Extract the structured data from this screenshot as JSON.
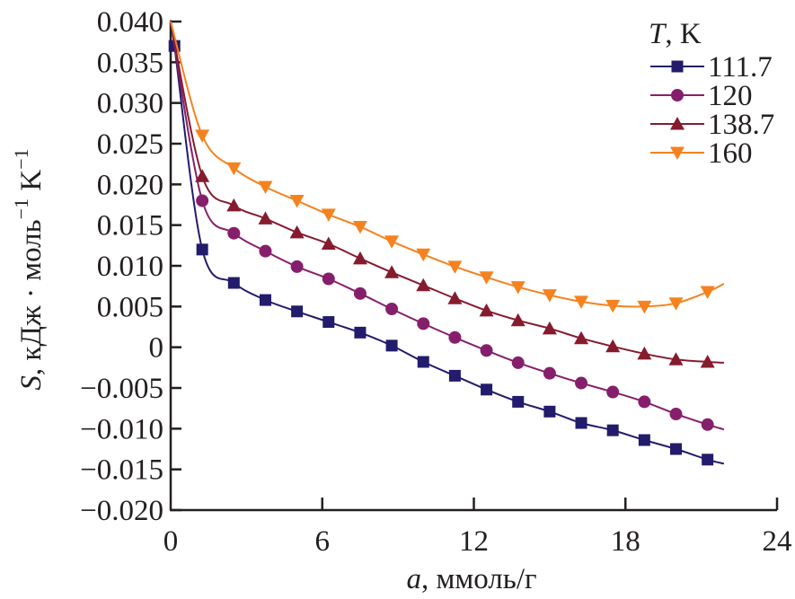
{
  "chart_data": {
    "type": "line",
    "title": "",
    "xlabel_var": "a",
    "xlabel_unit": ", ммоль/г",
    "ylabel_var": "S",
    "ylabel_unit": ", кДж · моль",
    "ylabel_sup1": "−1",
    "ylabel_unit2": " K",
    "ylabel_sup2": "−1",
    "xlim": [
      0,
      24
    ],
    "ylim": [
      -0.02,
      0.04
    ],
    "xticks": [
      0,
      6,
      12,
      18,
      24
    ],
    "xtick_labels": [
      "0",
      "6",
      "12",
      "18",
      "24"
    ],
    "yticks": [
      0.04,
      0.035,
      0.03,
      0.025,
      0.02,
      0.015,
      0.01,
      0.005,
      0,
      -0.005,
      -0.01,
      -0.015,
      -0.02
    ],
    "ytick_labels": [
      "0.040",
      "0.035",
      "0.030",
      "0.025",
      "0.020",
      "0.015",
      "0.010",
      "0.005",
      "0",
      "−0.005",
      "−0.010",
      "−0.015",
      "−0.020"
    ],
    "grid": false,
    "legend": {
      "placement": "top-right",
      "title_var": "T",
      "title_unit": ", K"
    },
    "series": [
      {
        "name": "111.7",
        "color": "#231b6b",
        "marker": "square",
        "x": [
          0.15,
          1.25,
          2.5,
          3.75,
          5,
          6.25,
          7.5,
          8.75,
          10,
          11.25,
          12.5,
          13.75,
          15,
          16.25,
          17.5,
          18.75,
          20,
          21.25
        ],
        "y": [
          0.037,
          0.012,
          0.0079,
          0.0058,
          0.0044,
          0.0031,
          0.0018,
          0.0002,
          -0.0018,
          -0.0035,
          -0.0052,
          -0.0067,
          -0.0079,
          -0.0093,
          -0.0102,
          -0.0114,
          -0.0125,
          -0.0138
        ],
        "curve_start": [
          0.0,
          0.04
        ],
        "curve_end": [
          21.9,
          -0.0143
        ]
      },
      {
        "name": "120",
        "color": "#861f6b",
        "marker": "circle",
        "x": [
          1.25,
          2.5,
          3.75,
          5,
          6.25,
          7.5,
          8.75,
          10,
          11.25,
          12.5,
          13.75,
          15,
          16.25,
          17.5,
          18.75,
          20,
          21.25
        ],
        "y": [
          0.018,
          0.014,
          0.0118,
          0.0099,
          0.0084,
          0.0066,
          0.0047,
          0.0029,
          0.0012,
          -0.0004,
          -0.0019,
          -0.0032,
          -0.0044,
          -0.0055,
          -0.0067,
          -0.0082,
          -0.0095
        ],
        "curve_start": [
          0.0,
          0.04
        ],
        "curve_end": [
          21.9,
          -0.0101
        ]
      },
      {
        "name": "138.7",
        "color": "#861b2e",
        "marker": "triangle-up",
        "x": [
          1.25,
          2.5,
          3.75,
          5,
          6.25,
          7.5,
          8.75,
          10,
          11.25,
          12.5,
          13.75,
          15,
          16.25,
          17.5,
          18.75,
          20,
          21.25
        ],
        "y": [
          0.021,
          0.0174,
          0.0158,
          0.0141,
          0.0127,
          0.0109,
          0.0092,
          0.0076,
          0.006,
          0.0045,
          0.0033,
          0.0023,
          0.0011,
          0.0001,
          -0.0008,
          -0.0015,
          -0.0018
        ],
        "curve_start": [
          0.0,
          0.04
        ],
        "curve_end": [
          21.9,
          -0.0019
        ]
      },
      {
        "name": "160",
        "color": "#f5821f",
        "marker": "triangle-down",
        "x": [
          1.25,
          2.5,
          3.75,
          5,
          6.25,
          7.5,
          8.75,
          10,
          11.25,
          12.5,
          13.75,
          15,
          16.25,
          17.5,
          18.75,
          20,
          21.25
        ],
        "y": [
          0.026,
          0.022,
          0.0197,
          0.018,
          0.0163,
          0.0148,
          0.013,
          0.0114,
          0.0099,
          0.0086,
          0.0074,
          0.0064,
          0.0056,
          0.0051,
          0.005,
          0.0054,
          0.0068
        ],
        "curve_start": [
          0.0,
          0.04
        ],
        "curve_end": [
          21.9,
          0.0078
        ]
      }
    ]
  }
}
